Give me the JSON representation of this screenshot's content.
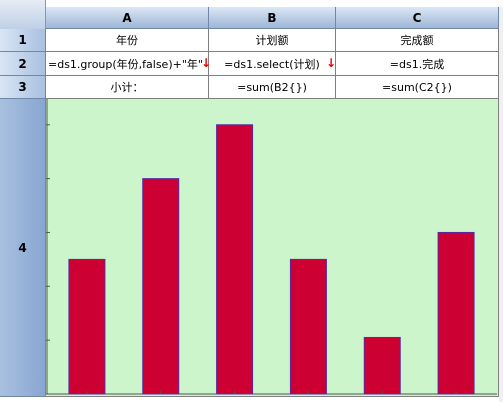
{
  "columns": [
    "A",
    "B",
    "C"
  ],
  "rows": [
    "1",
    "2",
    "3",
    "4"
  ],
  "cells": {
    "A1": "年份",
    "B1": "计划额",
    "C1": "完成额",
    "A2": "=ds1.group(年份,false)+\"年\"",
    "B2": "=ds1.select(计划)",
    "C2": "=ds1.完成",
    "A3": "小计：",
    "B3": "=sum(B2{})",
    "C3": "=sum(C2{})"
  },
  "icons": {
    "expand_arrow": "down-arrow-icon"
  },
  "colors": {
    "bar": "#cc0033",
    "chart_bg": "#ccf5cc",
    "arrow": "#e60000"
  },
  "chart_data": {
    "type": "bar",
    "categories": [
      "",
      "",
      "",
      "",
      "",
      ""
    ],
    "values": [
      2.5,
      4.0,
      5.0,
      2.5,
      1.05,
      3.0
    ],
    "ylim": [
      0,
      5.2
    ],
    "grid": false,
    "legend": "none",
    "title": "",
    "xlabel": "",
    "ylabel": ""
  }
}
